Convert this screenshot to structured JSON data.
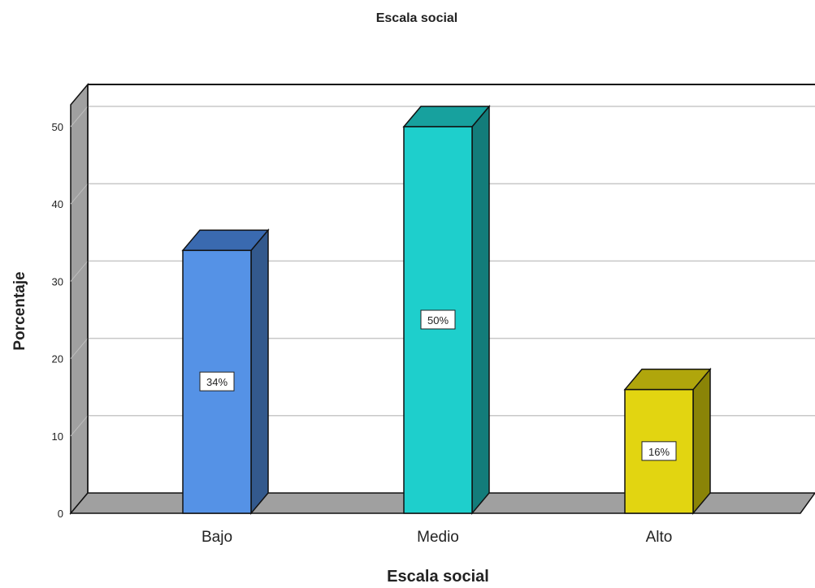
{
  "chart_data": {
    "type": "bar",
    "title": "Escala social",
    "xlabel": "Escala social",
    "ylabel": "Porcentaje",
    "categories": [
      "Bajo",
      "Medio",
      "Alto"
    ],
    "values": [
      34,
      50,
      16
    ],
    "data_labels": [
      "34%",
      "50%",
      "16%"
    ],
    "y_ticks": [
      0,
      10,
      20,
      30,
      40,
      50
    ],
    "ylim": [
      0,
      53
    ],
    "grid": true,
    "style": "3d",
    "colors": {
      "bars_front": [
        "#5592e6",
        "#1ecfcc",
        "#e2d511"
      ],
      "bars_side": [
        "#33598d",
        "#137c7a",
        "#8a8407"
      ],
      "bars_top": [
        "#3a6ab0",
        "#17a19e",
        "#b0a60c"
      ],
      "floor": "#a0a0a0",
      "wall": "#a0a0a0",
      "grid": "#c8c8c8"
    }
  }
}
